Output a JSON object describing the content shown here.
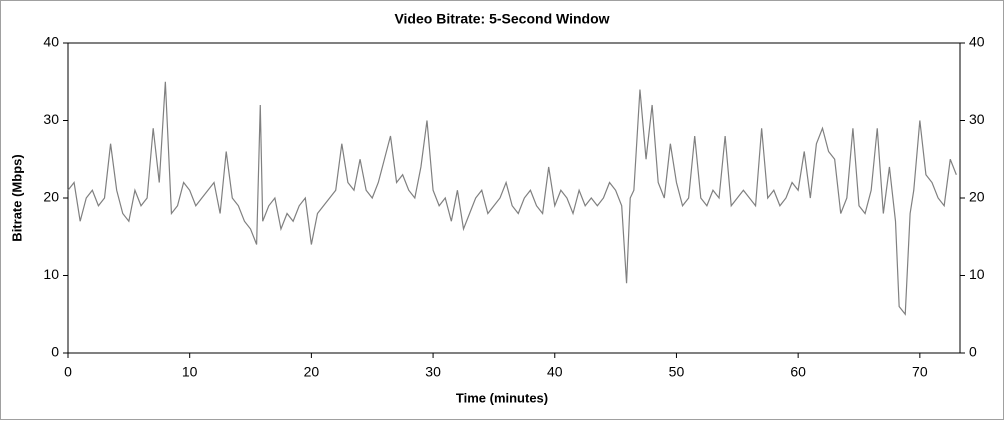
{
  "chart_data": {
    "type": "line",
    "title": "Video Bitrate: 5-Second Window",
    "x_label": "Time (minutes)",
    "y_label": "Bitrate (Mbps)",
    "x": [
      0,
      0.5,
      1,
      1.5,
      2,
      2.5,
      3,
      3.5,
      4,
      4.5,
      5,
      5.5,
      6,
      6.5,
      7,
      7.5,
      8,
      8.5,
      9,
      9.5,
      10,
      10.5,
      11,
      11.5,
      12,
      12.5,
      13,
      13.5,
      14,
      14.5,
      15,
      15.5,
      15.8,
      16,
      16.5,
      17,
      17.5,
      18,
      18.5,
      19,
      19.5,
      20,
      20.5,
      21,
      21.5,
      22,
      22.5,
      23,
      23.5,
      24,
      24.5,
      25,
      25.5,
      26,
      26.5,
      27,
      27.5,
      28,
      28.5,
      29,
      29.5,
      30,
      30.5,
      31,
      31.5,
      32,
      32.5,
      33,
      33.5,
      34,
      34.5,
      35,
      35.5,
      36,
      36.5,
      37,
      37.5,
      38,
      38.5,
      39,
      39.5,
      40,
      40.5,
      41,
      41.5,
      42,
      42.5,
      43,
      43.5,
      44,
      44.5,
      45,
      45.5,
      45.9,
      46.2,
      46.5,
      47,
      47.5,
      48,
      48.5,
      49,
      49.5,
      50,
      50.5,
      51,
      51.5,
      52,
      52.5,
      53,
      53.5,
      54,
      54.5,
      55,
      55.5,
      56,
      56.5,
      57,
      57.5,
      58,
      58.5,
      59,
      59.5,
      60,
      60.5,
      61,
      61.5,
      62,
      62.5,
      63,
      63.5,
      64,
      64.5,
      65,
      65.5,
      66,
      66.5,
      67,
      67.5,
      68,
      68.3,
      68.8,
      69.2,
      69.5,
      70,
      70.5,
      71,
      71.5,
      72,
      72.5,
      73
    ],
    "series": [
      {
        "name": "Bitrate",
        "color": "#808080",
        "values": [
          21,
          22,
          17,
          20,
          21,
          19,
          20,
          27,
          21,
          18,
          17,
          21,
          19,
          20,
          29,
          22,
          35,
          18,
          19,
          22,
          21,
          19,
          20,
          21,
          22,
          18,
          26,
          20,
          19,
          17,
          16,
          14,
          32,
          17,
          19,
          20,
          16,
          18,
          17,
          19,
          20,
          14,
          18,
          19,
          20,
          21,
          27,
          22,
          21,
          25,
          21,
          20,
          22,
          25,
          28,
          22,
          23,
          21,
          20,
          24,
          30,
          21,
          19,
          20,
          17,
          21,
          16,
          18,
          20,
          21,
          18,
          19,
          20,
          22,
          19,
          18,
          20,
          21,
          19,
          18,
          24,
          19,
          21,
          20,
          18,
          21,
          19,
          20,
          19,
          20,
          22,
          21,
          19,
          9,
          20,
          21,
          34,
          25,
          32,
          22,
          20,
          27,
          22,
          19,
          20,
          28,
          20,
          19,
          21,
          20,
          28,
          19,
          20,
          21,
          20,
          19,
          29,
          20,
          21,
          19,
          20,
          22,
          21,
          26,
          20,
          27,
          29,
          26,
          25,
          18,
          20,
          29,
          19,
          18,
          21,
          29,
          18,
          24,
          17,
          6,
          5,
          18,
          21,
          30,
          23,
          22,
          20,
          19,
          25,
          23
        ]
      }
    ],
    "xlim": [
      0,
      73.3
    ],
    "xticks": [
      0,
      10,
      20,
      30,
      40,
      50,
      60,
      70
    ],
    "ylim": [
      0,
      40
    ],
    "yticks": [
      0,
      10,
      20,
      30,
      40
    ],
    "y2lim": [
      0,
      40
    ],
    "y2ticks": [
      0,
      10,
      20,
      30,
      40
    ]
  }
}
